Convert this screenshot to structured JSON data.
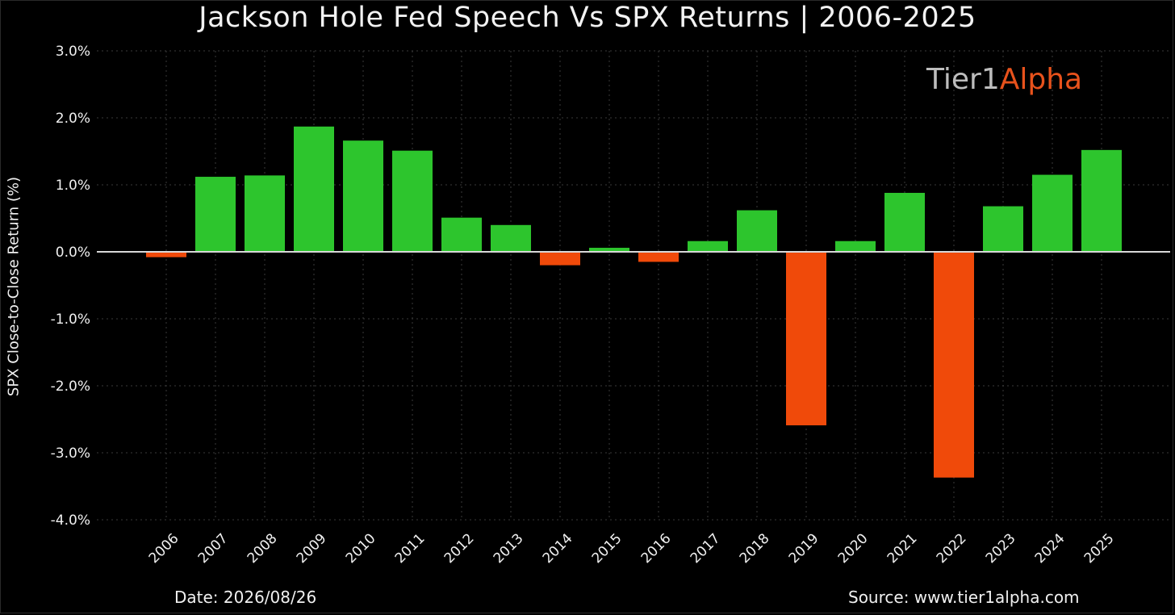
{
  "chart_data": {
    "type": "bar",
    "title": "Jackson Hole Fed Speech Vs SPX Returns | 2006-2025",
    "xlabel": "",
    "ylabel": "SPX Close-to-Close Return (%)",
    "categories": [
      "2006",
      "2007",
      "2008",
      "2009",
      "2010",
      "2011",
      "2012",
      "2013",
      "2014",
      "2015",
      "2016",
      "2017",
      "2018",
      "2019",
      "2020",
      "2021",
      "2022",
      "2023",
      "2024",
      "2025"
    ],
    "values": [
      -0.08,
      1.12,
      1.14,
      1.87,
      1.66,
      1.51,
      0.51,
      0.4,
      -0.2,
      0.06,
      -0.15,
      0.16,
      0.62,
      -2.59,
      0.16,
      0.88,
      -3.37,
      0.68,
      1.15,
      1.52
    ],
    "ylim": [
      -4.0,
      3.0
    ],
    "yticks": [
      "3.0%",
      "2.0%",
      "1.0%",
      "0.0%",
      "-1.0%",
      "-2.0%",
      "-3.0%",
      "-4.0%"
    ],
    "ytick_values": [
      3.0,
      2.0,
      1.0,
      0.0,
      -1.0,
      -2.0,
      -3.0,
      -4.0
    ],
    "grid": true,
    "colors": {
      "positive": "#2dc52d",
      "negative": "#f04a0a",
      "zero_line": "#d8d8d8",
      "grid": "#3a3a3a",
      "background": "#000000"
    }
  },
  "brand": {
    "part1": "Tier1",
    "part2": "Alpha"
  },
  "footer": {
    "date": "Date: 2026/08/26",
    "source": "Source: www.tier1alpha.com"
  }
}
